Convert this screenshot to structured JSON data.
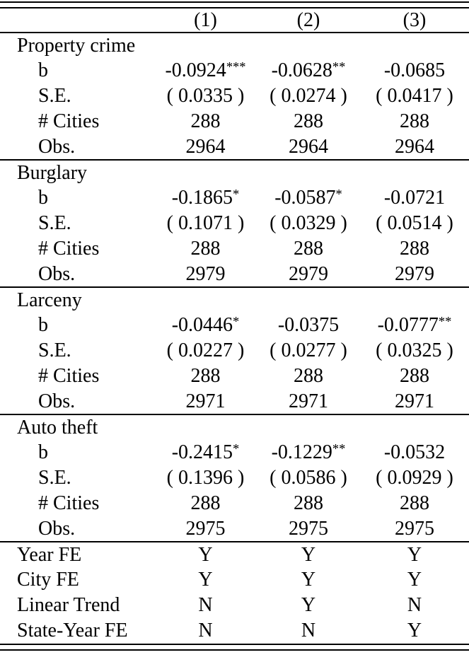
{
  "table": {
    "column_headers": [
      "(1)",
      "(2)",
      "(3)"
    ],
    "sections": [
      {
        "label": "Property crime",
        "rows": [
          {
            "label": "b",
            "values": [
              {
                "v": "-0.0924",
                "s": "***"
              },
              {
                "v": "-0.0628",
                "s": "**"
              },
              {
                "v": "-0.0685",
                "s": ""
              }
            ]
          },
          {
            "label": "S.E.",
            "values": [
              {
                "v": "( 0.0335 )",
                "s": ""
              },
              {
                "v": "( 0.0274 )",
                "s": ""
              },
              {
                "v": "( 0.0417 )",
                "s": ""
              }
            ]
          },
          {
            "label": "# Cities",
            "values": [
              {
                "v": "288",
                "s": ""
              },
              {
                "v": "288",
                "s": ""
              },
              {
                "v": "288",
                "s": ""
              }
            ]
          },
          {
            "label": "Obs.",
            "values": [
              {
                "v": "2964",
                "s": ""
              },
              {
                "v": "2964",
                "s": ""
              },
              {
                "v": "2964",
                "s": ""
              }
            ]
          }
        ]
      },
      {
        "label": "Burglary",
        "rows": [
          {
            "label": "b",
            "values": [
              {
                "v": "-0.1865",
                "s": "*"
              },
              {
                "v": "-0.0587",
                "s": "*"
              },
              {
                "v": "-0.0721",
                "s": ""
              }
            ]
          },
          {
            "label": "S.E.",
            "values": [
              {
                "v": "( 0.1071 )",
                "s": ""
              },
              {
                "v": "( 0.0329 )",
                "s": ""
              },
              {
                "v": "( 0.0514 )",
                "s": ""
              }
            ]
          },
          {
            "label": "# Cities",
            "values": [
              {
                "v": "288",
                "s": ""
              },
              {
                "v": "288",
                "s": ""
              },
              {
                "v": "288",
                "s": ""
              }
            ]
          },
          {
            "label": "Obs.",
            "values": [
              {
                "v": "2979",
                "s": ""
              },
              {
                "v": "2979",
                "s": ""
              },
              {
                "v": "2979",
                "s": ""
              }
            ]
          }
        ]
      },
      {
        "label": "Larceny",
        "rows": [
          {
            "label": "b",
            "values": [
              {
                "v": "-0.0446",
                "s": "*"
              },
              {
                "v": "-0.0375",
                "s": ""
              },
              {
                "v": "-0.0777",
                "s": "**"
              }
            ]
          },
          {
            "label": "S.E.",
            "values": [
              {
                "v": "( 0.0227 )",
                "s": ""
              },
              {
                "v": "( 0.0277 )",
                "s": ""
              },
              {
                "v": "( 0.0325 )",
                "s": ""
              }
            ]
          },
          {
            "label": "# Cities",
            "values": [
              {
                "v": "288",
                "s": ""
              },
              {
                "v": "288",
                "s": ""
              },
              {
                "v": "288",
                "s": ""
              }
            ]
          },
          {
            "label": "Obs.",
            "values": [
              {
                "v": "2971",
                "s": ""
              },
              {
                "v": "2971",
                "s": ""
              },
              {
                "v": "2971",
                "s": ""
              }
            ]
          }
        ]
      },
      {
        "label": "Auto theft",
        "rows": [
          {
            "label": "b",
            "values": [
              {
                "v": "-0.2415",
                "s": "*"
              },
              {
                "v": "-0.1229",
                "s": "**"
              },
              {
                "v": "-0.0532",
                "s": ""
              }
            ]
          },
          {
            "label": "S.E.",
            "values": [
              {
                "v": "( 0.1396 )",
                "s": ""
              },
              {
                "v": "( 0.0586 )",
                "s": ""
              },
              {
                "v": "( 0.0929 )",
                "s": ""
              }
            ]
          },
          {
            "label": "# Cities",
            "values": [
              {
                "v": "288",
                "s": ""
              },
              {
                "v": "288",
                "s": ""
              },
              {
                "v": "288",
                "s": ""
              }
            ]
          },
          {
            "label": "Obs.",
            "values": [
              {
                "v": "2975",
                "s": ""
              },
              {
                "v": "2975",
                "s": ""
              },
              {
                "v": "2975",
                "s": ""
              }
            ]
          }
        ]
      }
    ],
    "footer_rows": [
      {
        "label": "Year FE",
        "values": [
          {
            "v": "Y",
            "s": ""
          },
          {
            "v": "Y",
            "s": ""
          },
          {
            "v": "Y",
            "s": ""
          }
        ]
      },
      {
        "label": "City FE",
        "values": [
          {
            "v": "Y",
            "s": ""
          },
          {
            "v": "Y",
            "s": ""
          },
          {
            "v": "Y",
            "s": ""
          }
        ]
      },
      {
        "label": "Linear Trend",
        "values": [
          {
            "v": "N",
            "s": ""
          },
          {
            "v": "Y",
            "s": ""
          },
          {
            "v": "N",
            "s": ""
          }
        ]
      },
      {
        "label": "State-Year FE",
        "values": [
          {
            "v": "N",
            "s": ""
          },
          {
            "v": "N",
            "s": ""
          },
          {
            "v": "Y",
            "s": ""
          }
        ]
      }
    ],
    "colors": {
      "text": "#000000",
      "rule": "#000000",
      "background": "#ffffff"
    }
  }
}
